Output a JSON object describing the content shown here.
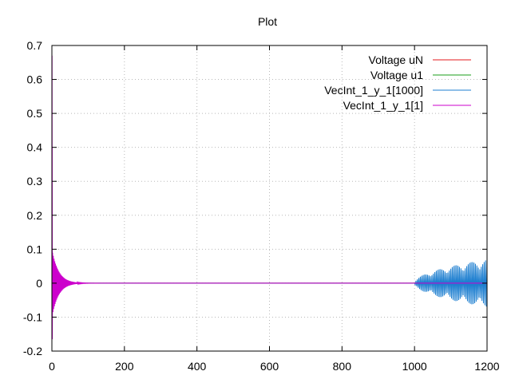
{
  "chart_data": {
    "type": "line",
    "title": "Plot",
    "xlabel": "",
    "ylabel": "",
    "xlim": [
      0,
      1200
    ],
    "ylim": [
      -0.2,
      0.7
    ],
    "x_ticks": [
      "0",
      "200",
      "400",
      "600",
      "800",
      "1000",
      "1200"
    ],
    "y_ticks": [
      "-0.2",
      "-0.1",
      "0",
      "0.1",
      "0.2",
      "0.3",
      "0.4",
      "0.5",
      "0.6",
      "0.7"
    ],
    "grid": true,
    "legend_position": "top-right",
    "series": [
      {
        "name": "Voltage uN",
        "color": "#e41a1c",
        "description_points": [
          [
            0,
            0
          ],
          [
            1200,
            0
          ]
        ]
      },
      {
        "name": "Voltage u1",
        "color": "#1a9e1a",
        "description_points": [
          [
            0,
            0
          ],
          [
            1200,
            0
          ]
        ]
      },
      {
        "name": "VecInt_1_y_1[1000]",
        "color": "#1e7fd0",
        "oscillation": {
          "start_x": 1000,
          "end_x": 1200,
          "start_amplitude": 0.0,
          "end_amplitude": 0.07,
          "period": 4
        }
      },
      {
        "name": "VecInt_1_y_1[1]",
        "color": "#cc00cc",
        "peak": {
          "x": 1,
          "y": 0.67
        },
        "trough": {
          "x": 2,
          "y": -0.165
        },
        "oscillation": {
          "start_x": 0,
          "end_x": 180,
          "start_amplitude": 0.09,
          "decay_x": 18,
          "period": 2
        }
      }
    ]
  }
}
